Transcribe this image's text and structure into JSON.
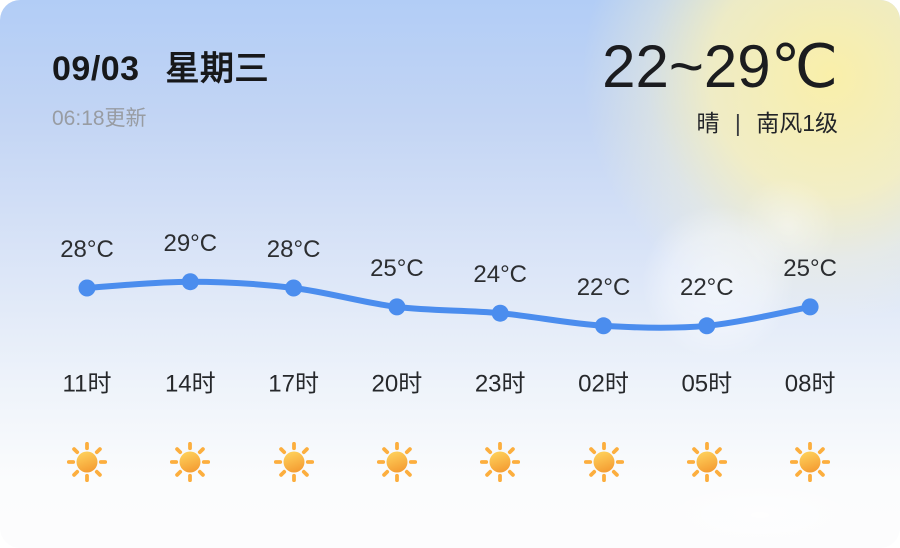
{
  "header": {
    "date": "09/03",
    "weekday": "星期三",
    "updated": "06:18更新",
    "temp_range": "22~29℃",
    "condition": "晴",
    "separator": "|",
    "wind": "南风1级"
  },
  "chart_data": {
    "type": "line",
    "title": "",
    "x": [
      "11时",
      "14时",
      "17时",
      "20时",
      "23时",
      "02时",
      "05时",
      "08时"
    ],
    "series": [
      {
        "name": "hourly-temperature",
        "values": [
          28,
          29,
          28,
          25,
          24,
          22,
          22,
          25
        ]
      }
    ],
    "point_labels": [
      "28°C",
      "29°C",
      "28°C",
      "25°C",
      "24°C",
      "22°C",
      "22°C",
      "25°C"
    ],
    "unit": "°C",
    "ylim": [
      21,
      30
    ],
    "grid": false,
    "legend": false,
    "icons": [
      "sunny",
      "sunny",
      "sunny",
      "sunny",
      "sunny",
      "sunny",
      "sunny",
      "sunny"
    ],
    "line_color": "#4b8dee"
  },
  "colors": {
    "line": "#4b8dee",
    "sun_disc_top": "#ffd65f",
    "sun_disc_bottom": "#f5a035",
    "sun_ray": "#fcae3e",
    "text_primary": "#1b1c1f",
    "text_secondary": "#989ca2",
    "card_top": "#b2cdf6",
    "card_bottom": "#fcfcfd"
  }
}
